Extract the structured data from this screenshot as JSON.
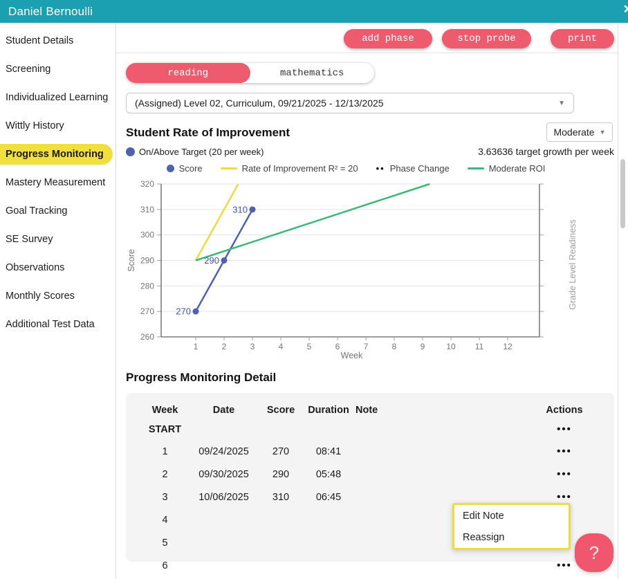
{
  "header": {
    "title": "Daniel Bernoulli",
    "close_icon": "✕"
  },
  "sidebar": {
    "items": [
      {
        "label": "Student Details",
        "active": false
      },
      {
        "label": "Screening",
        "active": false
      },
      {
        "label": "Individualized Learning",
        "active": false
      },
      {
        "label": "Wittly History",
        "active": false
      },
      {
        "label": "Progress Monitoring",
        "active": true
      },
      {
        "label": "Mastery Measurement",
        "active": false
      },
      {
        "label": "Goal Tracking",
        "active": false
      },
      {
        "label": "SE Survey",
        "active": false
      },
      {
        "label": "Observations",
        "active": false
      },
      {
        "label": "Monthly Scores",
        "active": false
      },
      {
        "label": "Additional Test Data",
        "active": false
      }
    ]
  },
  "toolbar": {
    "add_phase": "add phase",
    "stop_probe": "stop probe",
    "print": "print"
  },
  "tabs": [
    {
      "label": "reading",
      "active": true
    },
    {
      "label": "mathematics",
      "active": false
    }
  ],
  "assignment_select": {
    "value": "(Assigned) Level 02, Curriculum, 09/21/2025 - 12/13/2025",
    "arrow_icon": "▼"
  },
  "roi_section": {
    "title": "Student Rate of Improvement",
    "level_select": {
      "value": "Moderate",
      "arrow_icon": "▼"
    },
    "target_status": "On/Above Target (20 per week)",
    "target_growth": "3.63636 target growth per week"
  },
  "chart_data": {
    "type": "line",
    "xlabel": "Week",
    "ylabel": "Score",
    "right_axis_label": "Grade Level Readiness",
    "ylim": [
      260,
      320
    ],
    "yticks": [
      260,
      270,
      280,
      290,
      300,
      310,
      320
    ],
    "xticks": [
      1,
      2,
      3,
      4,
      5,
      6,
      7,
      8,
      9,
      10,
      11,
      12
    ],
    "grid": true,
    "legend_position": "top-center",
    "legend": [
      {
        "label": "Score",
        "swatch": "dot",
        "color": "#5061AE"
      },
      {
        "label": "Rate of Improvement R² = 20",
        "swatch": "line",
        "color": "#F2D940"
      },
      {
        "label": "Phase Change",
        "swatch": "dots",
        "color": "#111111"
      },
      {
        "label": "Moderate ROI",
        "swatch": "line",
        "color": "#3CB878"
      }
    ],
    "series": [
      {
        "name": "Score",
        "color": "#5061AE",
        "x": [
          1,
          2,
          3
        ],
        "y": [
          270,
          290,
          310
        ],
        "point_labels": [
          "270",
          "290",
          "310"
        ],
        "markers": true
      },
      {
        "name": "Rate of Improvement",
        "color": "#F2D940",
        "x": [
          1,
          2.5
        ],
        "y": [
          290,
          320
        ],
        "slope_per_week": 20,
        "markers": false
      },
      {
        "name": "Moderate ROI",
        "color": "#3CB878",
        "x": [
          1,
          9.25
        ],
        "y": [
          290,
          320
        ],
        "slope_per_week": 3.63636,
        "markers": false
      }
    ]
  },
  "detail_section": {
    "title": "Progress Monitoring Detail",
    "table": {
      "headers": {
        "week": "Week",
        "date": "Date",
        "score": "Score",
        "duration": "Duration",
        "note": "Note",
        "actions": "Actions"
      },
      "actions_icon": "•••",
      "phase_row": {
        "week": "START"
      },
      "rows": [
        {
          "week": "1",
          "date": "09/24/2025",
          "score": "270",
          "duration": "08:41",
          "note": ""
        },
        {
          "week": "2",
          "date": "09/30/2025",
          "score": "290",
          "duration": "05:48",
          "note": ""
        },
        {
          "week": "3",
          "date": "10/06/2025",
          "score": "310",
          "duration": "06:45",
          "note": ""
        },
        {
          "week": "4",
          "date": "",
          "score": "",
          "duration": "",
          "note": ""
        },
        {
          "week": "5",
          "date": "",
          "score": "",
          "duration": "",
          "note": ""
        },
        {
          "week": "6",
          "date": "",
          "score": "",
          "duration": "",
          "note": ""
        }
      ]
    }
  },
  "context_menu": {
    "items": [
      {
        "label": "Edit Note"
      },
      {
        "label": "Reassign"
      }
    ]
  },
  "help_button": {
    "label": "?"
  },
  "colors": {
    "header_teal": "#1BA0B2",
    "accent_pink": "#EE5A6E",
    "highlight_yellow": "#F0DF3F",
    "menu_border_yellow": "#F0DC3C",
    "score_blue": "#5061AE",
    "roi_yellow": "#F2D940",
    "moderate_green": "#3CB878",
    "table_bg": "#F4F4F5"
  }
}
